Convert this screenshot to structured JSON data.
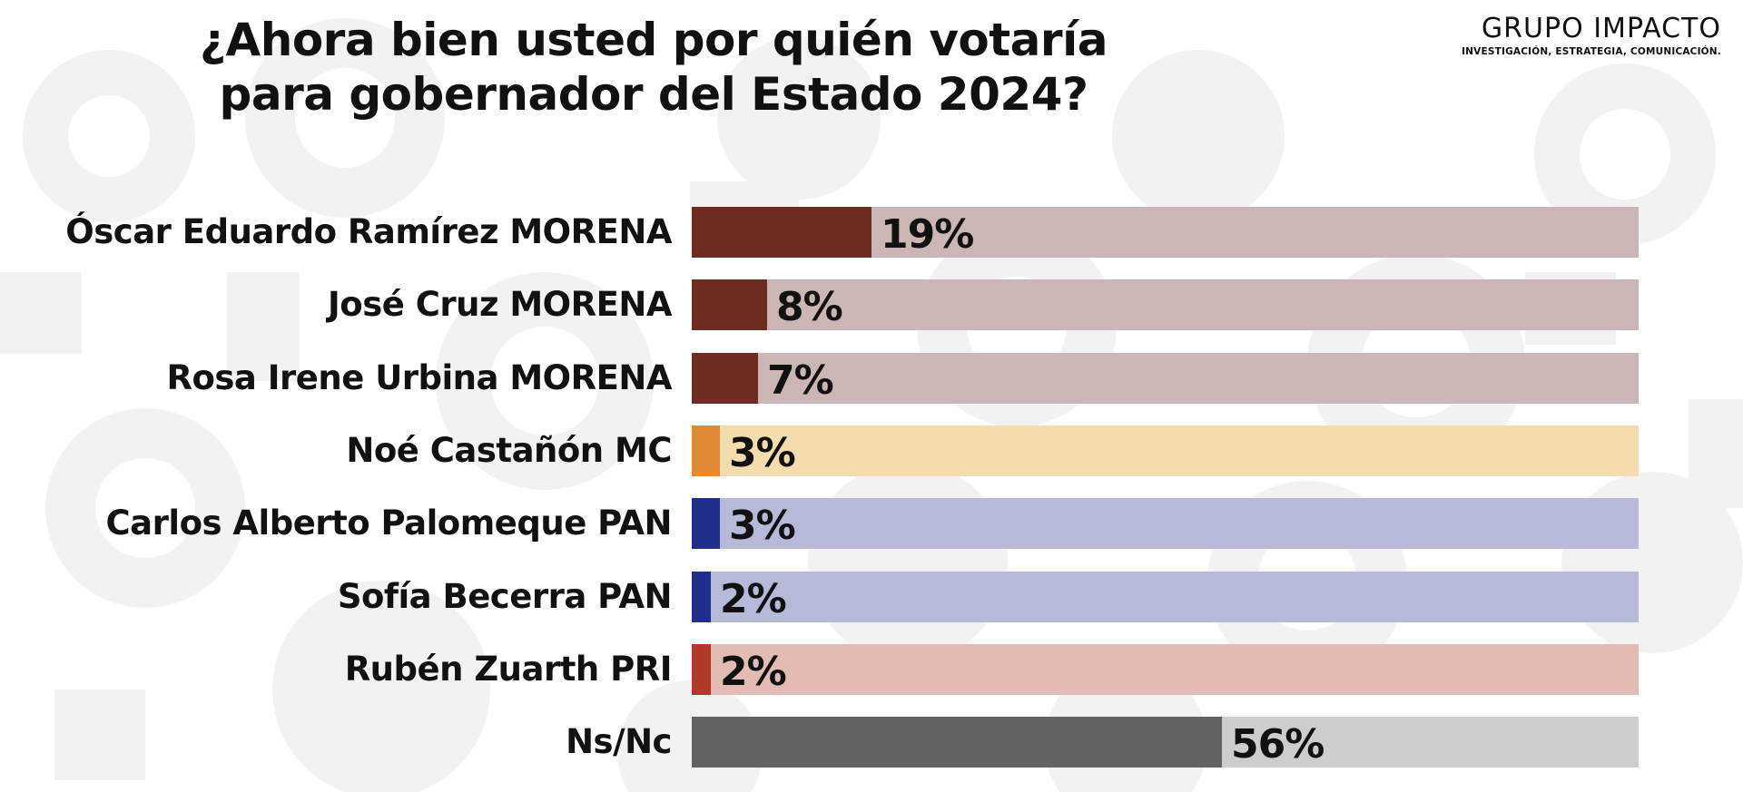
{
  "header": {
    "title_line1": "¿Ahora bien usted por quién votaría",
    "title_line2": "para gobernador del Estado 2024?"
  },
  "brand": {
    "name": "GRUPO IMPACTO",
    "tagline": "INVESTIGACIÓN, ESTRATEGIA, COMUNICACIÓN."
  },
  "chart_data": {
    "type": "bar",
    "orientation": "horizontal",
    "title": "¿Ahora bien usted por quién votaría para gobernador del Estado 2024?",
    "xlim": [
      0,
      100
    ],
    "grid": false,
    "legend": "none",
    "categories": [
      "Óscar Eduardo Ramírez MORENA",
      "José Cruz MORENA",
      "Rosa Irene Urbina MORENA",
      "Noé Castañón MC",
      "Carlos Alberto Palomeque PAN",
      "Sofía Becerra PAN",
      "Rubén Zuarth PRI",
      "Ns/Nc"
    ],
    "values": [
      19,
      8,
      7,
      3,
      3,
      2,
      2,
      56
    ],
    "value_labels": [
      "19%",
      "8%",
      "7%",
      "3%",
      "3%",
      "2%",
      "2%",
      "56%"
    ],
    "bar_colors": [
      "#6e2b22",
      "#6e2b22",
      "#6e2b22",
      "#e08a33",
      "#222f8a",
      "#222f8a",
      "#b03a2a",
      "#636363"
    ],
    "track_colors": [
      "#ccb6b4",
      "#ccb6b4",
      "#ccb6b4",
      "#f5dcae",
      "#b5bad8",
      "#b5bad8",
      "#e2bbb4",
      "#cdcdcd"
    ]
  }
}
